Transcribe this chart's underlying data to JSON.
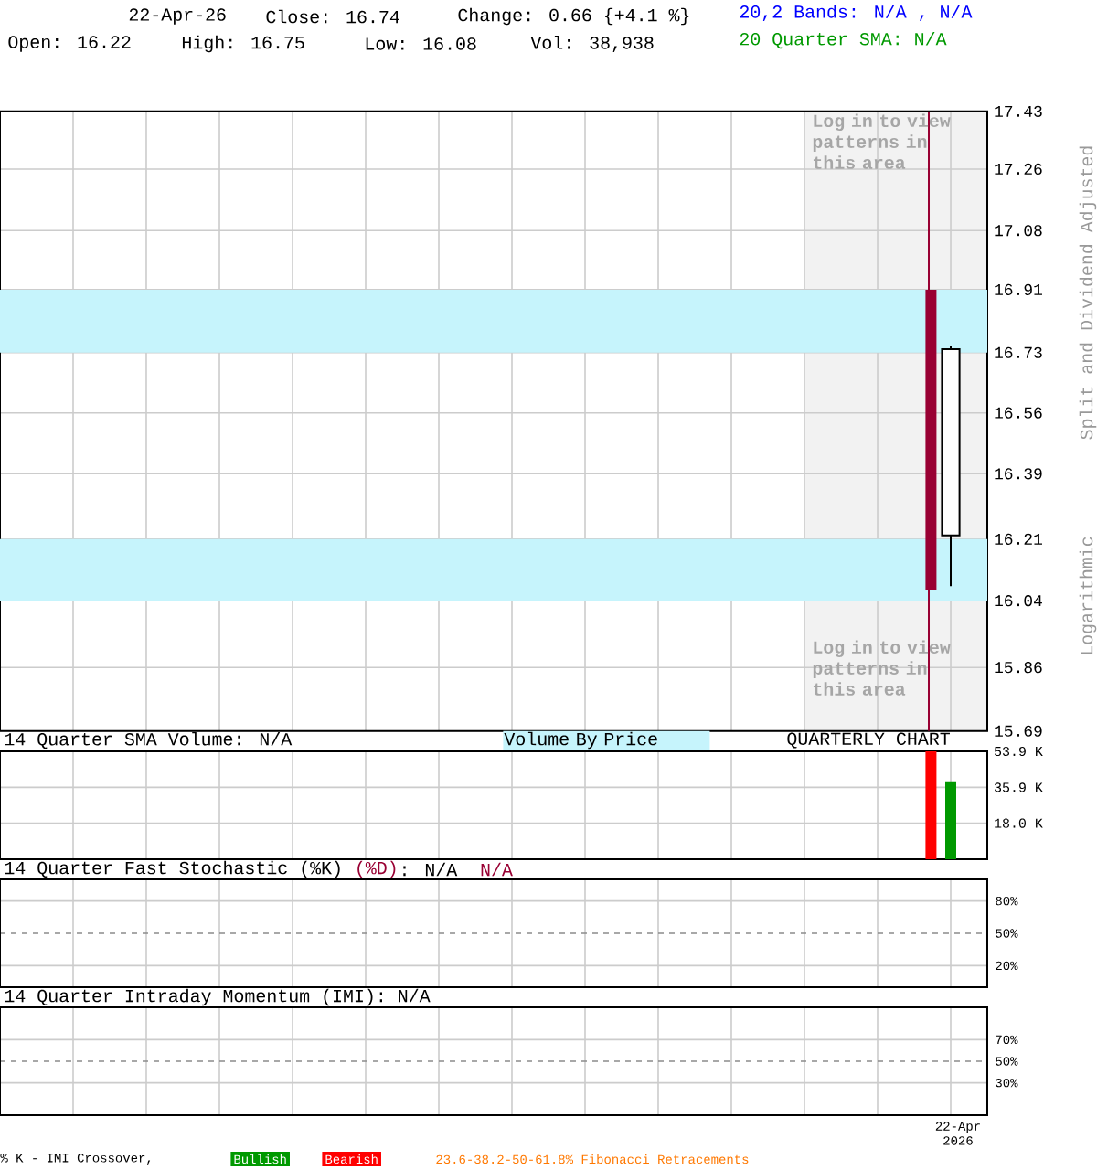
{
  "chart_data": [
    {
      "type": "candlestick",
      "annotations": [
        "22-Apr-26",
        "Close: 16.74",
        "Change: 0.66 {+4.1 %}",
        "Open: 16.22",
        "High: 16.75",
        "Low: 16.08",
        "Vol: 38,938",
        "20,2 Bands: N/A , N/A",
        "20 Quarter SMA: N/A",
        "Log in to view patterns in this area",
        "Log in to view patterns in this area",
        "Split and Dividend Adjusted",
        "Logarithmic"
      ],
      "categories": [
        null,
        null,
        null,
        null,
        null,
        null,
        null,
        null,
        null,
        null,
        null,
        null,
        null
      ],
      "ohlc": [
        null,
        null,
        null,
        null,
        null,
        null,
        null,
        null,
        null,
        null,
        null,
        null,
        [
          16.22,
          16.75,
          16.08,
          16.74
        ]
      ],
      "series": [
        {
          "type": "bar",
          "color": "#990033",
          "base": [
            null,
            null,
            null,
            null,
            null,
            null,
            null,
            null,
            null,
            null,
            null,
            null,
            16.07
          ],
          "values": [
            null,
            null,
            null,
            null,
            null,
            null,
            null,
            null,
            null,
            null,
            null,
            null,
            0.84
          ]
        }
      ],
      "ylim": [
        15.69,
        17.43
      ],
      "yticks": [
        15.69,
        15.86,
        16.04,
        16.21,
        16.39,
        16.56,
        16.73,
        16.91,
        17.08,
        17.26,
        17.43
      ],
      "log": "y",
      "grid": true,
      "tick_labels": "y",
      "bands": [
        {
          "axis": "y",
          "from": 16.73,
          "to": 16.91,
          "color": "#c6f4fc"
        },
        {
          "axis": "y",
          "from": 16.04,
          "to": 16.21,
          "color": "#c6f4fc"
        }
      ],
      "ref_lines": [
        {
          "axis": "x",
          "color": "#990033"
        }
      ]
    },
    {
      "type": "bar",
      "title": "14 Quarter SMA Volume: N/A",
      "annotations": [
        "Volume By Price",
        "QUARTERLY CHART"
      ],
      "categories": [
        null,
        null,
        null,
        null,
        null,
        null,
        null,
        null,
        null,
        null,
        null,
        null,
        null
      ],
      "series": [
        {
          "color": "#ff0000",
          "values": [
            null,
            null,
            null,
            null,
            null,
            null,
            null,
            null,
            null,
            null,
            null,
            null,
            53.9
          ]
        },
        {
          "color": "#009900",
          "values": [
            null,
            null,
            null,
            null,
            null,
            null,
            null,
            null,
            null,
            null,
            null,
            null,
            38.9
          ]
        }
      ],
      "ylim": [
        0,
        53.9
      ],
      "yticks": [
        {
          "value": 18.0,
          "label": "18.0 K"
        },
        {
          "value": 35.9,
          "label": "35.9 K"
        },
        {
          "value": 53.9,
          "label": "53.9 K"
        }
      ],
      "grid": true,
      "tick_labels": "y"
    },
    {
      "type": "other",
      "title": "14 Quarter Fast Stochastic (%K)",
      "annotations": [
        "(%D)",
        ": N/A",
        "N/A",
        "80%",
        "50%",
        "20%"
      ]
    },
    {
      "type": "other",
      "title": "14 Quarter Intraday Momentum (IMI): N/A",
      "annotations": [
        "22-Apr 2026",
        "% K - IMI Crossover,",
        "Bullish",
        "Bearish",
        "23.6-38.2-50-61.8% Fibonacci Retracements",
        "70%",
        "50%",
        "30%"
      ]
    }
  ]
}
